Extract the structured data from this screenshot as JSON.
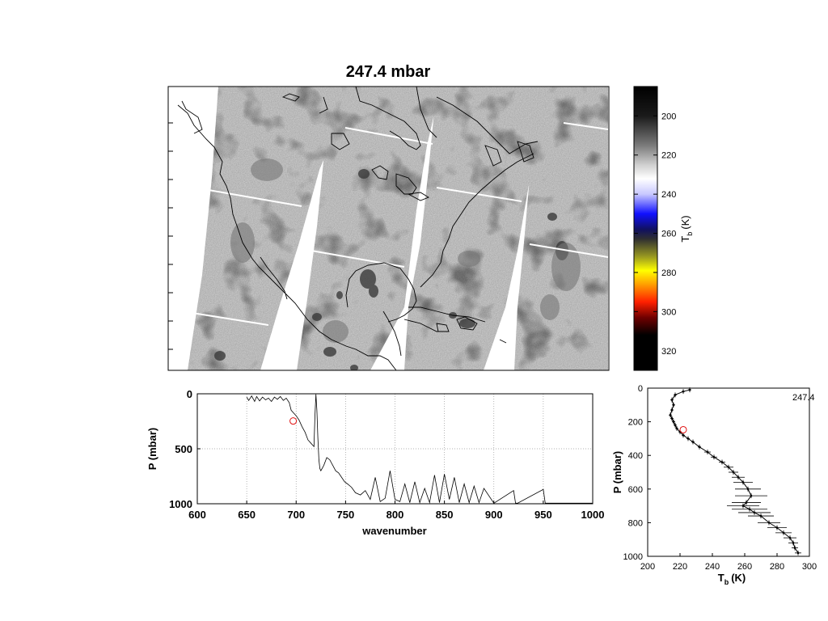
{
  "title": "247.4 mbar",
  "colors": {
    "background": "#ffffff",
    "axis": "#000000",
    "map_swath_light": "#d6d6d6",
    "map_swath_dark": "#5a5a5a",
    "marker": "#e01010"
  },
  "map": {
    "title": "247.4 mbar",
    "colorbar": {
      "label_main": "T",
      "label_sub": "b",
      "label_unit": "(K)",
      "ticks": [
        "200",
        "220",
        "240",
        "260",
        "280",
        "300",
        "320"
      ],
      "tick_values": [
        200,
        220,
        240,
        260,
        280,
        300,
        320
      ],
      "range": [
        185,
        330
      ],
      "stops": [
        {
          "value": 185,
          "color": "#000000"
        },
        {
          "value": 200,
          "color": "#1a1a1a"
        },
        {
          "value": 215,
          "color": "#7a7a7a"
        },
        {
          "value": 225,
          "color": "#cfcfcf"
        },
        {
          "value": 232,
          "color": "#ffffff"
        },
        {
          "value": 240,
          "color": "#c8c8ff"
        },
        {
          "value": 250,
          "color": "#1010ff"
        },
        {
          "value": 258,
          "color": "#101060"
        },
        {
          "value": 263,
          "color": "#303030"
        },
        {
          "value": 272,
          "color": "#9a9a20"
        },
        {
          "value": 279,
          "color": "#ffff00"
        },
        {
          "value": 286,
          "color": "#ffa000"
        },
        {
          "value": 295,
          "color": "#ff2000"
        },
        {
          "value": 303,
          "color": "#700000"
        },
        {
          "value": 312,
          "color": "#000000"
        },
        {
          "value": 330,
          "color": "#000000"
        }
      ]
    }
  },
  "chart_data": [
    {
      "type": "line",
      "xlabel": "wavenumber",
      "ylabel": "P (mbar)",
      "xlim": [
        600,
        1000
      ],
      "ylim": [
        0,
        1000
      ],
      "y_reversed": true,
      "grid": true,
      "xticks": [
        "600",
        "650",
        "700",
        "750",
        "800",
        "850",
        "900",
        "950",
        "1000"
      ],
      "yticks": [
        "0",
        "500",
        "1000"
      ],
      "series": [
        {
          "x": [
            650,
            652,
            655,
            658,
            660,
            663,
            666,
            669,
            672,
            675,
            678,
            681,
            684,
            687,
            690,
            693,
            695,
            698,
            700,
            703,
            706,
            709,
            712,
            715,
            718,
            719,
            720,
            721,
            722,
            723,
            724,
            725,
            728,
            731,
            734,
            737,
            740,
            743,
            746,
            749,
            752,
            756,
            760,
            765,
            770,
            775,
            780,
            785,
            790,
            795,
            800,
            805,
            810,
            815,
            820,
            825,
            830,
            835,
            840,
            845,
            850,
            855,
            860,
            865,
            870,
            875,
            880,
            885,
            890,
            900,
            920,
            922,
            924,
            950,
            952,
            1000
          ],
          "y": [
            30,
            60,
            20,
            70,
            25,
            65,
            30,
            55,
            40,
            70,
            30,
            50,
            25,
            60,
            40,
            80,
            150,
            180,
            200,
            240,
            300,
            350,
            420,
            450,
            480,
            200,
            5,
            150,
            400,
            600,
            680,
            700,
            650,
            580,
            600,
            650,
            700,
            720,
            760,
            800,
            820,
            850,
            900,
            920,
            880,
            960,
            760,
            980,
            950,
            700,
            960,
            980,
            820,
            990,
            800,
            990,
            860,
            990,
            740,
            990,
            730,
            960,
            760,
            990,
            820,
            990,
            840,
            990,
            860,
            995,
            880,
            995,
            995,
            870,
            995,
            995
          ]
        }
      ],
      "marker": {
        "x": 697,
        "y": 247.4
      }
    },
    {
      "type": "line",
      "xlabel": "T",
      "xlabel_sub": "b",
      "xlabel_unit": "(K)",
      "ylabel": "P (mbar)",
      "xlim": [
        200,
        300
      ],
      "ylim": [
        0,
        1000
      ],
      "y_reversed": true,
      "grid": false,
      "xticks": [
        "200",
        "220",
        "240",
        "260",
        "280",
        "300"
      ],
      "yticks": [
        "0",
        "200",
        "400",
        "600",
        "800",
        "1000"
      ],
      "annotation": "247.4",
      "series": [
        {
          "T": [
            226,
            222,
            217,
            215,
            216,
            215,
            214,
            215,
            216,
            217,
            218,
            220,
            222,
            225,
            228,
            232,
            237,
            241,
            246,
            250,
            253,
            256,
            259,
            262,
            264,
            261,
            259,
            263,
            266,
            270,
            275,
            280,
            284,
            288,
            290,
            291,
            293
          ],
          "P": [
            10,
            20,
            40,
            70,
            100,
            130,
            160,
            180,
            200,
            220,
            240,
            260,
            280,
            300,
            320,
            350,
            380,
            410,
            440,
            470,
            500,
            530,
            560,
            600,
            640,
            680,
            700,
            720,
            740,
            760,
            800,
            830,
            860,
            890,
            920,
            950,
            980
          ],
          "err": [
            1,
            1,
            1,
            1,
            1,
            1,
            1,
            1,
            1,
            1,
            1,
            1,
            1,
            1,
            1,
            1,
            2,
            2,
            2,
            3,
            3,
            4,
            6,
            8,
            10,
            9,
            10,
            11,
            10,
            8,
            7,
            6,
            5,
            4,
            3,
            2,
            2
          ]
        }
      ],
      "marker": {
        "T": 222,
        "P": 247.4
      }
    }
  ]
}
